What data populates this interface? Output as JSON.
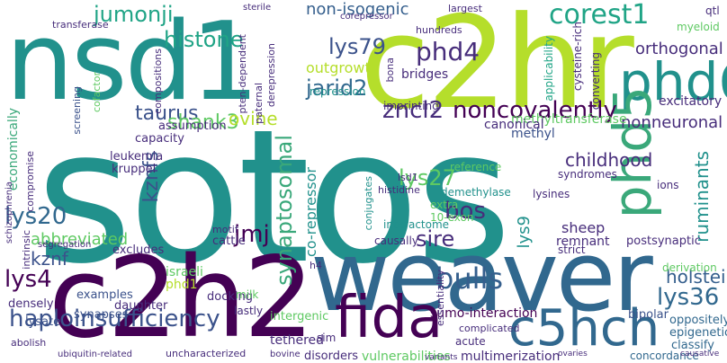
{
  "palette": {
    "teal": "#21918c",
    "green": "#3aa87a",
    "lime": "#b5de2b",
    "ltgreen": "#5ec962",
    "blue": "#3b528b",
    "navy": "#31688e",
    "purple": "#440154",
    "indigo": "#472d7b",
    "slate": "#355f8d",
    "mint": "#20a486"
  },
  "words": [
    {
      "text": "sotos",
      "color": "teal"
    },
    {
      "text": "nsd1",
      "color": "teal"
    },
    {
      "text": "c2hr",
      "color": "lime"
    },
    {
      "text": "c2h2",
      "color": "purple"
    },
    {
      "text": "weaver",
      "color": "navy"
    },
    {
      "text": "phd6",
      "color": "teal"
    },
    {
      "text": "phd5",
      "color": "green"
    },
    {
      "text": "c5hch",
      "color": "navy"
    },
    {
      "text": "fida",
      "color": "purple"
    },
    {
      "text": "corest1",
      "color": "mint"
    },
    {
      "text": "jumonji",
      "color": "mint"
    },
    {
      "text": "histone",
      "color": "mint"
    },
    {
      "text": "lys79",
      "color": "blue"
    },
    {
      "text": "jarid2",
      "color": "navy"
    },
    {
      "text": "phd4",
      "color": "indigo"
    },
    {
      "text": "non-isogenic",
      "color": "slate"
    },
    {
      "text": "orthogonal",
      "color": "indigo"
    },
    {
      "text": "nonneuronal",
      "color": "indigo"
    },
    {
      "text": "noncovalently",
      "color": "purple"
    },
    {
      "text": "taurus",
      "color": "blue"
    },
    {
      "text": "shank3",
      "color": "ltgreen"
    },
    {
      "text": "zncl2",
      "color": "indigo"
    },
    {
      "text": "synaptosomal",
      "color": "green"
    },
    {
      "text": "haploinsufficiency",
      "color": "blue"
    },
    {
      "text": "bulls",
      "color": "slate"
    },
    {
      "text": "lys27",
      "color": "ltgreen"
    },
    {
      "text": "lys20",
      "color": "navy"
    },
    {
      "text": "lys36",
      "color": "navy"
    },
    {
      "text": "lys4",
      "color": "purple"
    },
    {
      "text": "bos",
      "color": "indigo"
    },
    {
      "text": "sire",
      "color": "indigo"
    },
    {
      "text": "jmj",
      "color": "purple"
    },
    {
      "text": "kznfs",
      "color": "blue"
    },
    {
      "text": "kznf",
      "color": "blue"
    },
    {
      "text": "holstein",
      "color": "slate"
    },
    {
      "text": "ruminants",
      "color": "teal"
    },
    {
      "text": "childhood",
      "color": "indigo"
    },
    {
      "text": "abbreviated",
      "color": "ltgreen"
    },
    {
      "text": "outgrowth",
      "color": "lime"
    },
    {
      "text": "ovine",
      "color": "lime"
    },
    {
      "text": "methyltransferase",
      "color": "ltgreen"
    },
    {
      "text": "sumo-interaction",
      "color": "purple"
    },
    {
      "text": "vulnerabilities",
      "color": "ltgreen"
    },
    {
      "text": "multimerization",
      "color": "indigo"
    },
    {
      "text": "tethered",
      "color": "indigo"
    },
    {
      "text": "intergenic",
      "color": "ltgreen"
    },
    {
      "text": "daughter",
      "color": "indigo"
    },
    {
      "text": "synapses",
      "color": "blue"
    },
    {
      "text": "examples",
      "color": "blue"
    },
    {
      "text": "densely",
      "color": "indigo"
    },
    {
      "text": "lysate",
      "color": "blue"
    },
    {
      "text": "economically",
      "color": "green"
    },
    {
      "text": "co-repressor",
      "color": "teal"
    },
    {
      "text": "israeli",
      "color": "ltgreen"
    },
    {
      "text": "phd1",
      "color": "lime"
    },
    {
      "text": "sheep",
      "color": "indigo"
    },
    {
      "text": "lys9",
      "color": "teal"
    },
    {
      "text": "remnant",
      "color": "indigo"
    },
    {
      "text": "bipolar",
      "color": "blue"
    },
    {
      "text": "oppositely",
      "color": "navy"
    },
    {
      "text": "epigenetic",
      "color": "navy"
    },
    {
      "text": "classify",
      "color": "navy"
    },
    {
      "text": "concordance",
      "color": "navy"
    },
    {
      "text": "postsynaptic",
      "color": "indigo"
    },
    {
      "text": "derivation",
      "color": "ltgreen"
    },
    {
      "text": "excitatory",
      "color": "indigo"
    },
    {
      "text": "myeloid",
      "color": "ltgreen"
    },
    {
      "text": "qtl",
      "color": "indigo"
    },
    {
      "text": "converting",
      "color": "indigo"
    },
    {
      "text": "cysteine-rich",
      "color": "indigo"
    },
    {
      "text": "applicability",
      "color": "mint"
    },
    {
      "text": "bridges",
      "color": "indigo"
    },
    {
      "text": "repression",
      "color": "teal"
    },
    {
      "text": "imprinting",
      "color": "indigo"
    },
    {
      "text": "canonical",
      "color": "indigo"
    },
    {
      "text": "methyl",
      "color": "blue"
    },
    {
      "text": "assumption",
      "color": "indigo"
    },
    {
      "text": "capacity",
      "color": "indigo"
    },
    {
      "text": "leukemia",
      "color": "indigo"
    },
    {
      "text": "kruppel",
      "color": "indigo"
    },
    {
      "text": "cattle",
      "color": "indigo"
    },
    {
      "text": "motif",
      "color": "indigo"
    },
    {
      "text": "excludes",
      "color": "indigo"
    },
    {
      "text": "docking",
      "color": "indigo"
    },
    {
      "text": "lastly",
      "color": "indigo"
    },
    {
      "text": "milk",
      "color": "ltgreen"
    },
    {
      "text": "sim",
      "color": "indigo"
    },
    {
      "text": "disorders",
      "color": "indigo"
    },
    {
      "text": "acute",
      "color": "indigo"
    },
    {
      "text": "complicated",
      "color": "indigo"
    },
    {
      "text": "syndromes",
      "color": "indigo"
    },
    {
      "text": "lysines",
      "color": "indigo"
    },
    {
      "text": "strict",
      "color": "indigo"
    },
    {
      "text": "ions",
      "color": "indigo"
    },
    {
      "text": "causally",
      "color": "indigo"
    },
    {
      "text": "extra",
      "color": "ltgreen"
    },
    {
      "text": "10-exon",
      "color": "ltgreen"
    },
    {
      "text": "interactome",
      "color": "teal"
    },
    {
      "text": "demethylase",
      "color": "teal"
    },
    {
      "text": "histidine",
      "color": "indigo"
    },
    {
      "text": "lsd1",
      "color": "indigo"
    },
    {
      "text": "reference",
      "color": "ltgreen"
    },
    {
      "text": "conjugates",
      "color": "teal"
    },
    {
      "text": "hundreds",
      "color": "indigo"
    },
    {
      "text": "largest",
      "color": "indigo"
    },
    {
      "text": "sterile",
      "color": "indigo"
    },
    {
      "text": "corepressor",
      "color": "indigo"
    },
    {
      "text": "transferase",
      "color": "indigo"
    },
    {
      "text": "screening",
      "color": "blue"
    },
    {
      "text": "cofactor",
      "color": "ltgreen"
    },
    {
      "text": "compositions",
      "color": "indigo"
    },
    {
      "text": "paternal",
      "color": "indigo"
    },
    {
      "text": "pten-dependent",
      "color": "indigo"
    },
    {
      "text": "derepression",
      "color": "indigo"
    },
    {
      "text": "assumption",
      "color": "indigo"
    },
    {
      "text": "essentiality",
      "color": "indigo"
    },
    {
      "text": "compromise",
      "color": "indigo"
    },
    {
      "text": "intrinsic",
      "color": "indigo"
    },
    {
      "text": "schizophrenia",
      "color": "indigo"
    },
    {
      "text": "segregation",
      "color": "indigo"
    },
    {
      "text": "h4",
      "color": "indigo"
    },
    {
      "text": "abolish",
      "color": "indigo"
    },
    {
      "text": "ubiquitin-related",
      "color": "indigo"
    },
    {
      "text": "uncharacterized",
      "color": "indigo"
    },
    {
      "text": "bovine",
      "color": "indigo"
    },
    {
      "text": "variants",
      "color": "indigo"
    },
    {
      "text": "ovaries",
      "color": "indigo"
    },
    {
      "text": "causative",
      "color": "indigo"
    },
    {
      "text": "bona",
      "color": "indigo"
    },
    {
      "text": "noncovalently",
      "color": "purple"
    }
  ]
}
